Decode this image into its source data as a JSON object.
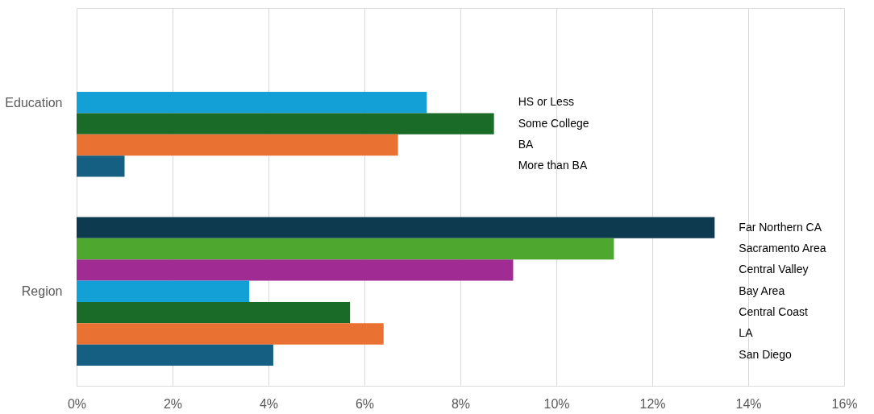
{
  "chart_data": {
    "type": "bar",
    "orientation": "horizontal",
    "categories": [
      "Education",
      "Region"
    ],
    "series": [
      {
        "name": "HS or Less",
        "color": "#12a0d7",
        "values": [
          7.3,
          null
        ]
      },
      {
        "name": "Some College",
        "color": "#1a6b27",
        "values": [
          8.7,
          null
        ]
      },
      {
        "name": "BA",
        "color": "#e97132",
        "values": [
          6.7,
          null
        ]
      },
      {
        "name": "More than BA",
        "color": "#156082",
        "values": [
          1.0,
          null
        ]
      },
      {
        "name": "Far Northern CA",
        "color": "#0e3a4f",
        "values": [
          null,
          13.3
        ]
      },
      {
        "name": "Sacramento Area",
        "color": "#4ea72e",
        "values": [
          null,
          11.2
        ]
      },
      {
        "name": "Central Valley",
        "color": "#a02b93",
        "values": [
          null,
          9.1
        ]
      },
      {
        "name": "Bay Area",
        "color": "#12a0d7",
        "values": [
          null,
          3.6
        ]
      },
      {
        "name": "Central Coast",
        "color": "#1a6b27",
        "values": [
          null,
          5.7
        ]
      },
      {
        "name": "LA",
        "color": "#e97132",
        "values": [
          null,
          6.4
        ]
      },
      {
        "name": "San Diego",
        "color": "#156082",
        "values": [
          null,
          4.1
        ]
      }
    ],
    "xlim": [
      0,
      16
    ],
    "xticks": [
      {
        "value": 0,
        "label": "0%"
      },
      {
        "value": 2,
        "label": "2%"
      },
      {
        "value": 4,
        "label": "4%"
      },
      {
        "value": 6,
        "label": "6%"
      },
      {
        "value": 8,
        "label": "8%"
      },
      {
        "value": 10,
        "label": "10%"
      },
      {
        "value": 12,
        "label": "12%"
      },
      {
        "value": 14,
        "label": "14%"
      },
      {
        "value": 16,
        "label": "16%"
      }
    ],
    "grid": "x",
    "legend": false
  }
}
